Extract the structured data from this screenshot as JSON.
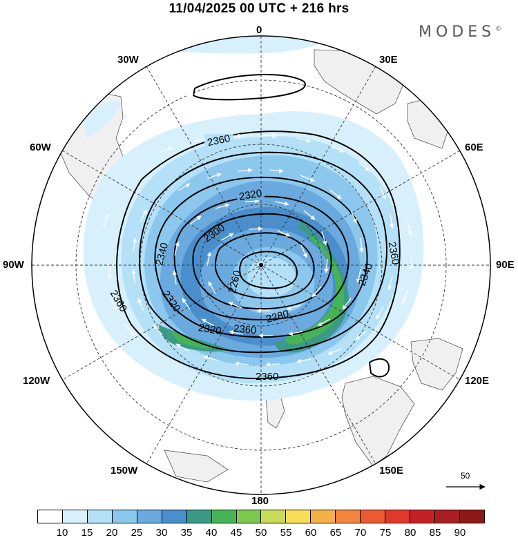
{
  "title": "11/04/2025  00 UTC  + 216 hrs",
  "brand": "MODES",
  "brand_mark": "©",
  "longitude_labels": {
    "lon_0": "0",
    "lon_30e": "30E",
    "lon_60e": "60E",
    "lon_90e": "90E",
    "lon_120e": "120E",
    "lon_150e": "150E",
    "lon_180": "180",
    "lon_150w": "150W",
    "lon_120w": "120W",
    "lon_90w": "90W",
    "lon_60w": "60W",
    "lon_30w": "30W"
  },
  "contour_labels": {
    "c1": "2360",
    "c2": "2320",
    "c3": "2300",
    "c4": "2340",
    "c5": "2260",
    "c6": "2360",
    "c7": "2320",
    "c8": "2320",
    "c9": "2360",
    "c10": "2280",
    "c11": "2340",
    "c12": "2360",
    "c13": "2360"
  },
  "vector_scale": "50",
  "colorbar": {
    "ticks": [
      "10",
      "15",
      "20",
      "25",
      "30",
      "35",
      "40",
      "45",
      "50",
      "55",
      "60",
      "65",
      "70",
      "75",
      "80",
      "85",
      "90"
    ],
    "colors": [
      "#ffffff",
      "#d8f0fc",
      "#b4e1f7",
      "#8cc8ee",
      "#6aaade",
      "#4a8fcc",
      "#3a9a86",
      "#46b456",
      "#7ec850",
      "#c8dc5a",
      "#f8de58",
      "#f6b04a",
      "#f3853e",
      "#ec5a34",
      "#de3a2c",
      "#c42126",
      "#a81e22",
      "#8c1818"
    ]
  }
}
